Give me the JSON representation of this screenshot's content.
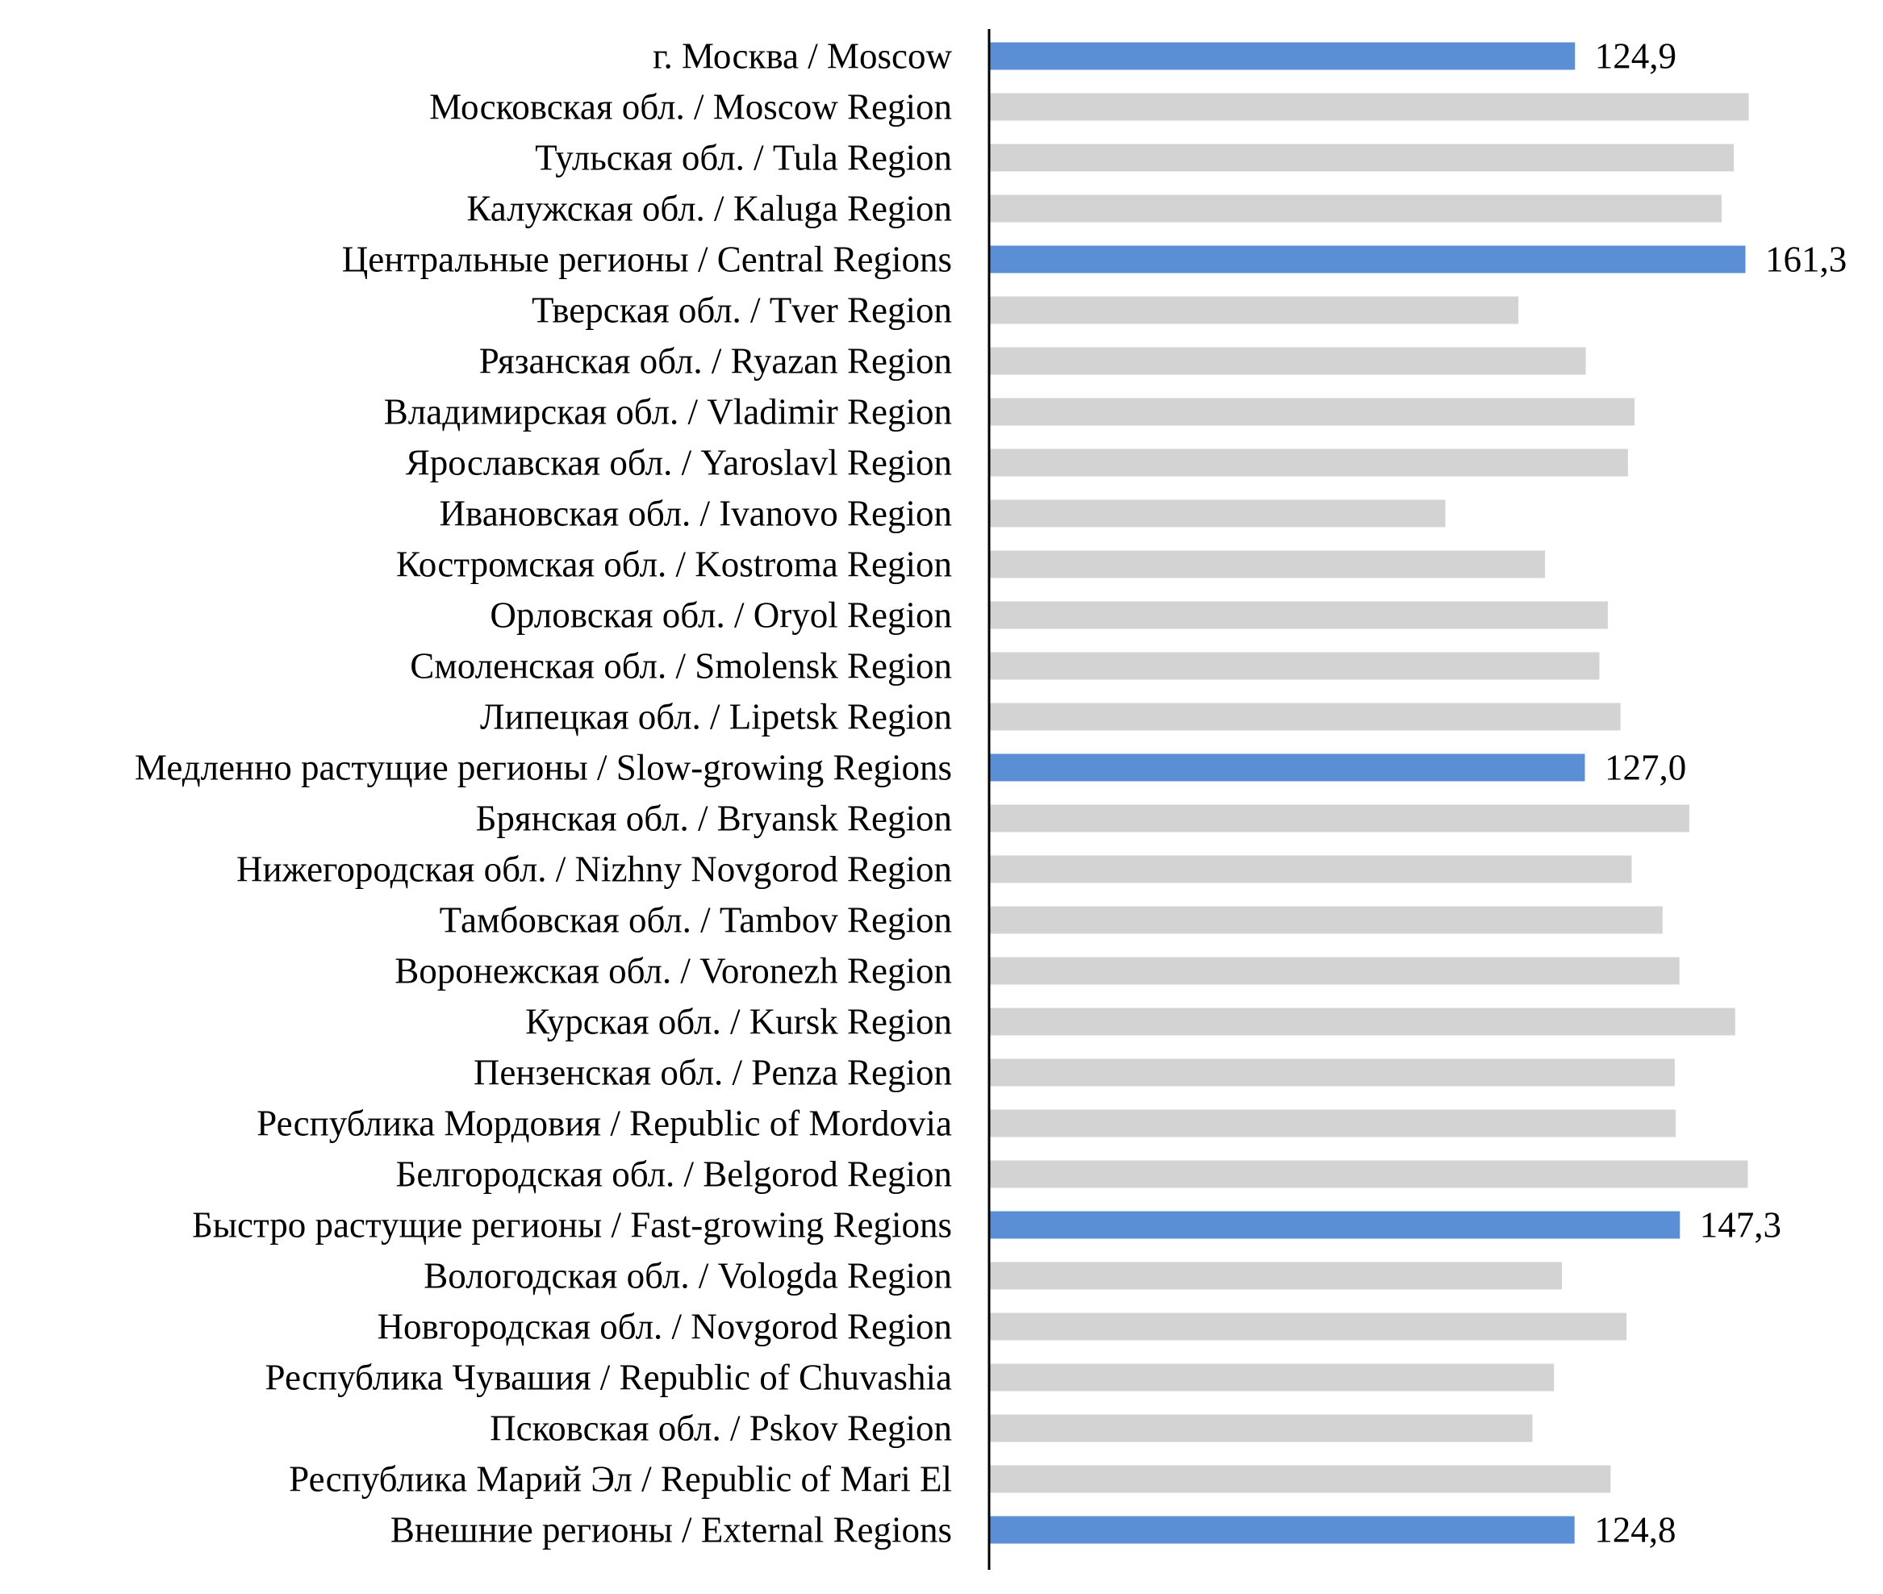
{
  "chart_data": {
    "type": "bar",
    "orientation": "horizontal",
    "title": "",
    "xlabel": "",
    "ylabel": "",
    "xlim": [
      0,
      161.3
    ],
    "grid": false,
    "legend": "none",
    "colors": {
      "aggregate": "#5B8FD5",
      "region": "#D3D3D3",
      "axis": "#000000"
    },
    "categories": [
      "г. Москва / Moscow",
      "Московская обл. / Moscow Region",
      "Тульская обл. / Tula Region",
      "Калужская обл. / Kaluga Region",
      "Центральные регионы / Central Regions",
      "Тверская обл. / Tver Region",
      "Рязанская обл. / Ryazan Region",
      "Владимирская обл. / Vladimir Region",
      "Ярославская обл. / Yaroslavl Region",
      "Ивановская обл. / Ivanovo Region",
      "Костромская обл. / Kostroma Region",
      "Орловская обл. / Oryol Region",
      "Смоленская обл. / Smolensk Region",
      "Липецкая обл. / Lipetsk Region",
      "Медленно растущие регионы / Slow-growing Regions",
      "Брянская обл. / Bryansk Region",
      "Нижегородская обл. / Nizhny Novgorod Region",
      "Тамбовская обл. / Tambov Region",
      "Воронежская обл. / Voronezh Region",
      "Курская обл. / Kursk Region",
      "Пензенская обл. / Penza Region",
      "Республика Мордовия / Republic of  Mordovia",
      "Белгородская обл. / Belgorod Region",
      "Быстро растущие регионы / Fast-growing Regions",
      "Вологодская обл. / Vologda Region",
      "Новгородская обл. / Novgorod Region",
      "Республика Чувашия / Republic of Chuvashia",
      "Псковская обл. / Pskov Region",
      "Республика Марий Эл / Republic of Mari El",
      "Внешние регионы / External Regions"
    ],
    "values": [
      124.9,
      162.0,
      158.8,
      156.2,
      161.3,
      112.8,
      127.2,
      137.6,
      136.2,
      97.2,
      118.5,
      131.9,
      130.1,
      134.6,
      127.0,
      149.3,
      137.0,
      143.6,
      147.2,
      159.1,
      146.2,
      146.4,
      161.8,
      147.3,
      122.1,
      135.9,
      120.4,
      115.8,
      132.5,
      124.8
    ],
    "highlighted": [
      true,
      false,
      false,
      false,
      true,
      false,
      false,
      false,
      false,
      false,
      false,
      false,
      false,
      false,
      true,
      false,
      false,
      false,
      false,
      false,
      false,
      false,
      false,
      true,
      false,
      false,
      false,
      false,
      false,
      true
    ],
    "data_labels": [
      "124,9",
      "",
      "",
      "",
      "161,3",
      "",
      "",
      "",
      "",
      "",
      "",
      "",
      "",
      "",
      "127,0",
      "",
      "",
      "",
      "",
      "",
      "",
      "",
      "",
      "147,3",
      "",
      "",
      "",
      "",
      "",
      "124,8"
    ]
  }
}
